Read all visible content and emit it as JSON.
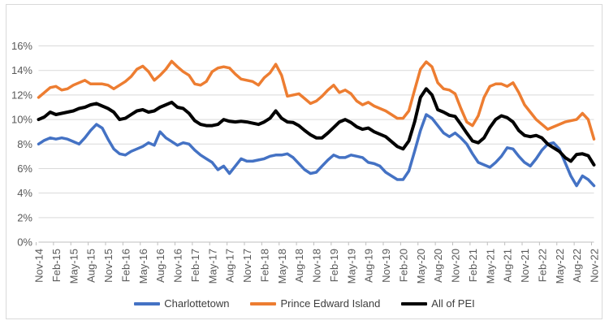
{
  "chart_data": {
    "type": "line",
    "title": "",
    "x_axis": {
      "tick_labels": [
        "Nov-14",
        "Feb-15",
        "May-15",
        "Aug-15",
        "Nov-15",
        "Feb-16",
        "May-16",
        "Aug-16",
        "Nov-16",
        "Feb-17",
        "May-17",
        "Aug-17",
        "Nov-17",
        "Feb-18",
        "May-18",
        "Aug-18",
        "Nov-18",
        "Feb-19",
        "May-19",
        "Aug-19",
        "Nov-19",
        "Feb-20",
        "May-20",
        "Aug-20",
        "Nov-20",
        "Feb-21",
        "May-21",
        "Aug-21",
        "Nov-21",
        "Feb-22",
        "May-22",
        "Aug-22",
        "Nov-22"
      ],
      "points_per_tick": 3,
      "frequency": "monthly",
      "start": "Nov-14",
      "end": "Nov-22"
    },
    "y_axis": {
      "tick_labels": [
        "0%",
        "2%",
        "4%",
        "6%",
        "8%",
        "10%",
        "12%",
        "14%",
        "16%"
      ],
      "min": 0,
      "max": 16,
      "step": 2,
      "unit": "%"
    },
    "grid": "horizontal",
    "legend_position": "bottom",
    "series": [
      {
        "name": "Charlottetown",
        "color": "#4472C4",
        "values": [
          8.0,
          8.3,
          8.5,
          8.4,
          8.5,
          8.4,
          8.2,
          8.0,
          8.5,
          9.1,
          9.6,
          9.3,
          8.4,
          7.6,
          7.2,
          7.1,
          7.4,
          7.6,
          7.8,
          8.1,
          7.9,
          9.0,
          8.5,
          8.2,
          7.9,
          8.1,
          8.0,
          7.5,
          7.1,
          6.8,
          6.5,
          5.9,
          6.2,
          5.6,
          6.2,
          6.8,
          6.6,
          6.6,
          6.7,
          6.8,
          7.0,
          7.1,
          7.1,
          7.2,
          6.9,
          6.4,
          5.9,
          5.6,
          5.7,
          6.2,
          6.7,
          7.1,
          6.9,
          6.9,
          7.1,
          7.0,
          6.9,
          6.5,
          6.4,
          6.2,
          5.7,
          5.4,
          5.1,
          5.1,
          5.8,
          7.4,
          9.1,
          10.4,
          10.1,
          9.5,
          8.9,
          8.6,
          8.9,
          8.5,
          8.0,
          7.2,
          6.5,
          6.3,
          6.1,
          6.5,
          7.0,
          7.7,
          7.6,
          7.0,
          6.5,
          6.2,
          6.8,
          7.5,
          8.0,
          8.1,
          7.6,
          6.5,
          5.4,
          4.6,
          5.4,
          5.1,
          4.6
        ]
      },
      {
        "name": "Prince Edward Island",
        "color": "#ED7D31",
        "values": [
          11.8,
          12.2,
          12.6,
          12.7,
          12.4,
          12.5,
          12.8,
          13.0,
          13.2,
          12.9,
          12.9,
          12.9,
          12.8,
          12.5,
          12.8,
          13.1,
          13.5,
          14.1,
          14.35,
          13.9,
          13.2,
          13.6,
          14.1,
          14.75,
          14.3,
          13.9,
          13.6,
          12.9,
          12.8,
          13.1,
          13.9,
          14.2,
          14.3,
          14.2,
          13.7,
          13.3,
          13.2,
          13.1,
          12.8,
          13.4,
          13.8,
          14.5,
          13.6,
          11.9,
          12.0,
          12.1,
          11.7,
          11.3,
          11.5,
          11.9,
          12.4,
          12.8,
          12.2,
          12.4,
          12.1,
          11.5,
          11.2,
          11.4,
          11.1,
          10.9,
          10.7,
          10.4,
          10.1,
          10.1,
          10.7,
          12.4,
          14.1,
          14.7,
          14.3,
          13.0,
          12.5,
          12.4,
          12.1,
          10.9,
          9.8,
          9.5,
          10.3,
          11.8,
          12.7,
          12.9,
          12.9,
          12.7,
          13.0,
          12.2,
          11.2,
          10.6,
          10.0,
          9.6,
          9.2,
          9.4,
          9.6,
          9.8,
          9.9,
          10.0,
          10.5,
          10.0,
          8.4
        ]
      },
      {
        "name": "All of PEI",
        "color": "#000000",
        "values": [
          10.0,
          10.2,
          10.6,
          10.4,
          10.5,
          10.6,
          10.7,
          10.9,
          11.0,
          11.2,
          11.3,
          11.1,
          10.9,
          10.6,
          10.0,
          10.1,
          10.4,
          10.7,
          10.8,
          10.6,
          10.7,
          11.0,
          11.2,
          11.4,
          11.0,
          10.9,
          10.5,
          9.9,
          9.6,
          9.5,
          9.5,
          9.6,
          10.0,
          9.85,
          9.8,
          9.85,
          9.8,
          9.7,
          9.6,
          9.8,
          10.1,
          10.7,
          10.1,
          9.8,
          9.75,
          9.5,
          9.1,
          8.75,
          8.5,
          8.5,
          8.9,
          9.35,
          9.8,
          10.0,
          9.75,
          9.4,
          9.2,
          9.3,
          9.0,
          8.8,
          8.6,
          8.2,
          7.8,
          7.6,
          8.25,
          9.8,
          11.8,
          12.5,
          12.0,
          10.8,
          10.6,
          10.35,
          10.25,
          9.6,
          8.9,
          8.25,
          8.1,
          8.5,
          9.35,
          10.0,
          10.3,
          10.15,
          9.8,
          9.1,
          8.7,
          8.6,
          8.7,
          8.5,
          8.0,
          7.7,
          7.4,
          6.9,
          6.6,
          7.15,
          7.2,
          7.05,
          6.3
        ]
      }
    ]
  },
  "colors": {
    "background": "#ffffff",
    "border": "#d9d9d9",
    "gridline": "#d9d9d9",
    "axis_line": "#bfbfbf",
    "axis_label": "#595959",
    "legend_text": "#3d3d3d"
  }
}
